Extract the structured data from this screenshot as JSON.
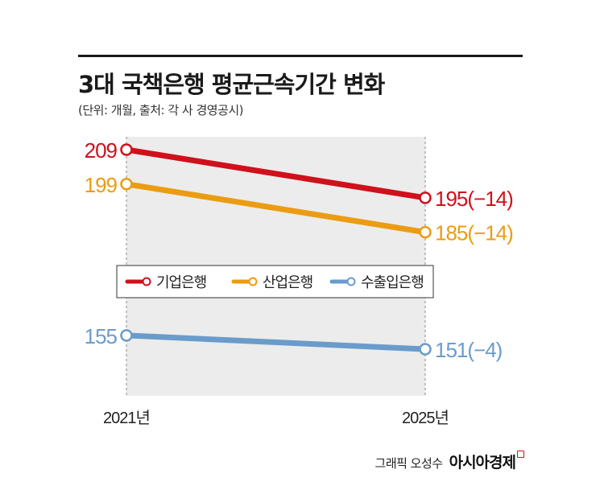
{
  "title": "3대 국책은행 평균근속기간 변화",
  "subtitle": "(단위: 개월, 출처: 각 사 경영공시)",
  "credit": "그래픽 오성수",
  "brand": "아시아경제",
  "chart_data": {
    "type": "line",
    "categories": [
      "2021년",
      "2025년"
    ],
    "series": [
      {
        "name": "기업은행",
        "values": [
          209,
          195
        ],
        "color": "#d0101b",
        "value_labels": [
          "209",
          "195(−14)"
        ]
      },
      {
        "name": "산업은행",
        "values": [
          199,
          185
        ],
        "color": "#eb9c12",
        "value_labels": [
          "199",
          "185(−14)"
        ]
      },
      {
        "name": "수출입은행",
        "values": [
          155,
          151
        ],
        "color": "#6a9ccb",
        "value_labels": [
          "155",
          "151(−4)"
        ]
      }
    ],
    "legend_position": "middle",
    "grid": false
  }
}
